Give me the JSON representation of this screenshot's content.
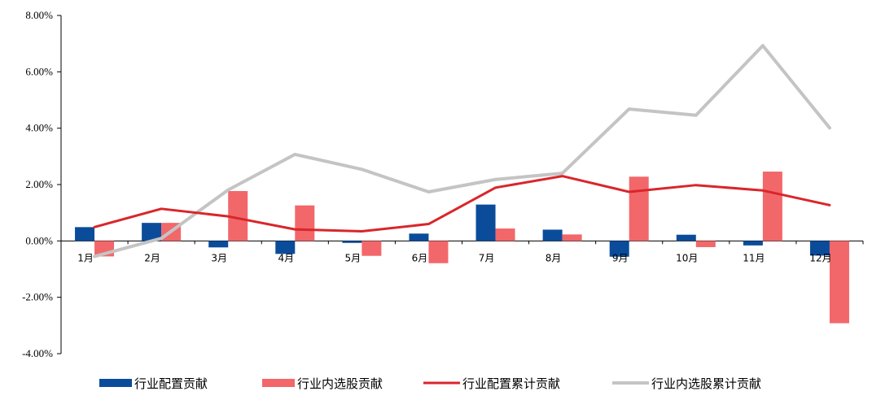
{
  "chart_data": {
    "type": "bar",
    "categories": [
      "1月",
      "2月",
      "3月",
      "4月",
      "5月",
      "6月",
      "7月",
      "8月",
      "9月",
      "10月",
      "11月",
      "12月"
    ],
    "y_tick_labels": [
      "8.00%",
      "6.00%",
      "4.00%",
      "2.00%",
      "0.00%",
      "-2.00%",
      "-4.00%"
    ],
    "ylim": [
      -4,
      8
    ],
    "y_unit": "%",
    "grid": false,
    "legend_position": "bottom",
    "series": [
      {
        "name": "行业配置贡献",
        "kind": "bar",
        "color": "#0B4C9A",
        "values": [
          0.49,
          0.64,
          -0.23,
          -0.46,
          -0.07,
          0.26,
          1.29,
          0.4,
          -0.56,
          0.22,
          -0.16,
          -0.52
        ]
      },
      {
        "name": "行业内选股贡献",
        "kind": "bar",
        "color": "#F2676A",
        "values": [
          -0.55,
          0.64,
          1.77,
          1.26,
          -0.53,
          -0.79,
          0.44,
          0.23,
          2.28,
          -0.22,
          2.46,
          -2.92
        ]
      },
      {
        "name": "行业配置累计贡献",
        "kind": "line",
        "color": "#D9262B",
        "values": [
          0.49,
          1.14,
          0.87,
          0.41,
          0.34,
          0.6,
          1.89,
          2.3,
          1.74,
          1.98,
          1.79,
          1.27
        ]
      },
      {
        "name": "行业内选股累计贡献",
        "kind": "line",
        "color": "#C4C4C4",
        "values": [
          -0.55,
          0.09,
          1.81,
          3.07,
          2.54,
          1.74,
          2.18,
          2.4,
          4.68,
          4.46,
          6.93,
          4.01
        ]
      }
    ]
  }
}
